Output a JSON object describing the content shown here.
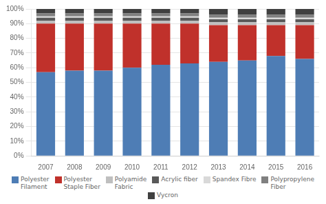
{
  "chart_data": {
    "type": "bar",
    "stacked": true,
    "categories": [
      "2007",
      "2008",
      "2009",
      "2010",
      "2011",
      "2012",
      "2013",
      "2014",
      "2015",
      "2016"
    ],
    "series": [
      {
        "name": "Polyester\nFilament",
        "color": "#4e7db5",
        "values": [
          57,
          58,
          58,
          60,
          62,
          63,
          64,
          65,
          68,
          66
        ]
      },
      {
        "name": "Polyester\nStaple Fiber",
        "color": "#c0312b",
        "values": [
          33,
          32,
          32,
          30,
          28,
          27,
          25,
          24,
          21,
          23
        ]
      },
      {
        "name": "Polyamide\nFabric",
        "color": "#bfbfbf",
        "values": [
          2,
          2,
          2,
          2,
          2,
          2,
          2,
          2,
          2,
          2
        ]
      },
      {
        "name": "Acrylic fiber",
        "color": "#595959",
        "values": [
          2,
          2,
          2,
          2,
          2,
          2,
          2,
          2,
          2,
          2
        ]
      },
      {
        "name": "Spandex Fibre",
        "color": "#d9d9d9",
        "values": [
          1,
          1,
          1,
          1,
          1,
          1,
          1,
          1,
          1,
          1
        ]
      },
      {
        "name": "Polypropylene\nFiber",
        "color": "#808080",
        "values": [
          2,
          2,
          2,
          2,
          2,
          2,
          2,
          2,
          2,
          2
        ]
      },
      {
        "name": "Vycron",
        "color": "#404040",
        "values": [
          3,
          3,
          3,
          3,
          3,
          3,
          4,
          4,
          4,
          4
        ]
      }
    ],
    "ylim": [
      0,
      100
    ],
    "yticks": [
      {
        "value": 0,
        "label": "0%"
      },
      {
        "value": 10,
        "label": "10%"
      },
      {
        "value": 20,
        "label": "20%"
      },
      {
        "value": 30,
        "label": "30%"
      },
      {
        "value": 40,
        "label": "40%"
      },
      {
        "value": 50,
        "label": "50%"
      },
      {
        "value": 60,
        "label": "60%"
      },
      {
        "value": 70,
        "label": "70%"
      },
      {
        "value": 80,
        "label": "80%"
      },
      {
        "value": 90,
        "label": "90%"
      },
      {
        "value": 100,
        "label": "100%"
      }
    ],
    "grid": true,
    "legend": "bottom"
  }
}
